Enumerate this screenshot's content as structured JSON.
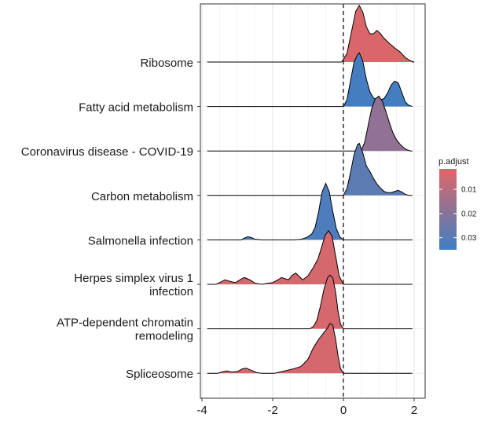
{
  "chart_data": {
    "type": "ridgeline",
    "xlim": [
      -4,
      2
    ],
    "x_ticks": [
      -4,
      -2,
      0,
      2
    ],
    "x_tick_labels": [
      "-4",
      "-2",
      "0",
      "2"
    ],
    "vline_x": 0,
    "grid": true,
    "categories": [
      {
        "label": "Ribosome",
        "p_adjust": 0.003,
        "density": [
          [
            -0.05,
            0
          ],
          [
            0.1,
            0.15
          ],
          [
            0.25,
            0.6
          ],
          [
            0.35,
            0.9
          ],
          [
            0.45,
            1.0
          ],
          [
            0.55,
            0.88
          ],
          [
            0.65,
            0.62
          ],
          [
            0.75,
            0.5
          ],
          [
            0.85,
            0.5
          ],
          [
            0.95,
            0.56
          ],
          [
            1.05,
            0.5
          ],
          [
            1.15,
            0.42
          ],
          [
            1.3,
            0.33
          ],
          [
            1.45,
            0.25
          ],
          [
            1.6,
            0.18
          ],
          [
            1.75,
            0.08
          ],
          [
            1.9,
            0.02
          ],
          [
            2.0,
            0
          ]
        ]
      },
      {
        "label": "Fatty acid metabolism",
        "p_adjust": 0.034,
        "density": [
          [
            0.0,
            0
          ],
          [
            0.1,
            0.12
          ],
          [
            0.2,
            0.45
          ],
          [
            0.3,
            0.78
          ],
          [
            0.4,
            0.92
          ],
          [
            0.45,
            0.95
          ],
          [
            0.55,
            0.8
          ],
          [
            0.65,
            0.48
          ],
          [
            0.75,
            0.26
          ],
          [
            0.85,
            0.15
          ],
          [
            0.95,
            0.12
          ],
          [
            1.05,
            0.12
          ],
          [
            1.15,
            0.14
          ],
          [
            1.25,
            0.24
          ],
          [
            1.35,
            0.38
          ],
          [
            1.45,
            0.45
          ],
          [
            1.55,
            0.42
          ],
          [
            1.65,
            0.25
          ],
          [
            1.75,
            0.08
          ],
          [
            1.85,
            0.02
          ],
          [
            1.95,
            0
          ]
        ]
      },
      {
        "label": "Coronavirus disease - COVID-19",
        "p_adjust": 0.018,
        "density": [
          [
            0.5,
            0
          ],
          [
            0.6,
            0.15
          ],
          [
            0.7,
            0.45
          ],
          [
            0.8,
            0.75
          ],
          [
            0.9,
            0.92
          ],
          [
            1.0,
            0.97
          ],
          [
            1.1,
            0.88
          ],
          [
            1.2,
            0.7
          ],
          [
            1.3,
            0.5
          ],
          [
            1.4,
            0.32
          ],
          [
            1.5,
            0.2
          ],
          [
            1.6,
            0.12
          ],
          [
            1.7,
            0.06
          ],
          [
            1.8,
            0.02
          ],
          [
            1.9,
            0
          ]
        ]
      },
      {
        "label": "Carbon metabolism",
        "p_adjust": 0.029,
        "density": [
          [
            0.0,
            0
          ],
          [
            0.1,
            0.12
          ],
          [
            0.2,
            0.4
          ],
          [
            0.3,
            0.72
          ],
          [
            0.4,
            0.9
          ],
          [
            0.45,
            0.92
          ],
          [
            0.55,
            0.75
          ],
          [
            0.65,
            0.52
          ],
          [
            0.75,
            0.42
          ],
          [
            0.85,
            0.3
          ],
          [
            0.95,
            0.2
          ],
          [
            1.05,
            0.13
          ],
          [
            1.15,
            0.07
          ],
          [
            1.25,
            0.05
          ],
          [
            1.35,
            0.05
          ],
          [
            1.45,
            0.07
          ],
          [
            1.55,
            0.09
          ],
          [
            1.65,
            0.06
          ],
          [
            1.75,
            0.02
          ],
          [
            1.85,
            0
          ]
        ]
      },
      {
        "label": "Salmonella infection",
        "p_adjust": 0.032,
        "density": [
          [
            -2.9,
            0
          ],
          [
            -2.8,
            0.03
          ],
          [
            -2.7,
            0.055
          ],
          [
            -2.6,
            0.04
          ],
          [
            -2.5,
            0.01
          ],
          [
            -2.3,
            0
          ],
          [
            -1.4,
            0
          ],
          [
            -1.2,
            0.01
          ],
          [
            -1.05,
            0.04
          ],
          [
            -0.9,
            0.1
          ],
          [
            -0.8,
            0.22
          ],
          [
            -0.7,
            0.5
          ],
          [
            -0.6,
            0.85
          ],
          [
            -0.5,
            1.0
          ],
          [
            -0.4,
            0.85
          ],
          [
            -0.3,
            0.5
          ],
          [
            -0.2,
            0.2
          ],
          [
            -0.1,
            0.05
          ],
          [
            0.0,
            0
          ]
        ]
      },
      {
        "label": "Herpes simplex virus 1 infection",
        "p_adjust": 0.004,
        "density": [
          [
            -3.6,
            0
          ],
          [
            -3.5,
            0.03
          ],
          [
            -3.35,
            0.08
          ],
          [
            -3.2,
            0.05
          ],
          [
            -3.05,
            0.03
          ],
          [
            -2.9,
            0.09
          ],
          [
            -2.8,
            0.12
          ],
          [
            -2.65,
            0.08
          ],
          [
            -2.5,
            0.02
          ],
          [
            -2.3,
            0
          ],
          [
            -2.15,
            0.02
          ],
          [
            -2.0,
            0.03
          ],
          [
            -1.85,
            0.08
          ],
          [
            -1.75,
            0.12
          ],
          [
            -1.65,
            0.1
          ],
          [
            -1.55,
            0.08
          ],
          [
            -1.45,
            0.16
          ],
          [
            -1.35,
            0.2
          ],
          [
            -1.25,
            0.14
          ],
          [
            -1.15,
            0.08
          ],
          [
            -1.0,
            0.15
          ],
          [
            -0.85,
            0.3
          ],
          [
            -0.72,
            0.45
          ],
          [
            -0.62,
            0.65
          ],
          [
            -0.52,
            0.86
          ],
          [
            -0.42,
            0.95
          ],
          [
            -0.32,
            0.85
          ],
          [
            -0.22,
            0.5
          ],
          [
            -0.12,
            0.15
          ],
          [
            0.0,
            0
          ]
        ]
      },
      {
        "label": "ATP-dependent chromatin remodeling",
        "p_adjust": 0.004,
        "density": [
          [
            -0.95,
            0
          ],
          [
            -0.85,
            0.04
          ],
          [
            -0.75,
            0.15
          ],
          [
            -0.65,
            0.4
          ],
          [
            -0.55,
            0.7
          ],
          [
            -0.45,
            0.9
          ],
          [
            -0.38,
            0.95
          ],
          [
            -0.3,
            0.9
          ],
          [
            -0.22,
            0.65
          ],
          [
            -0.15,
            0.3
          ],
          [
            -0.08,
            0.08
          ],
          [
            0.0,
            0
          ]
        ]
      },
      {
        "label": "Spliceosome",
        "p_adjust": 0.004,
        "density": [
          [
            -3.55,
            0
          ],
          [
            -3.45,
            0.02
          ],
          [
            -3.3,
            0.04
          ],
          [
            -3.15,
            0.02
          ],
          [
            -3.0,
            0.03
          ],
          [
            -2.85,
            0.08
          ],
          [
            -2.75,
            0.09
          ],
          [
            -2.6,
            0.05
          ],
          [
            -2.45,
            0.01
          ],
          [
            -2.3,
            0
          ],
          [
            -1.95,
            0
          ],
          [
            -1.8,
            0.02
          ],
          [
            -1.6,
            0.05
          ],
          [
            -1.4,
            0.08
          ],
          [
            -1.2,
            0.12
          ],
          [
            -1.0,
            0.25
          ],
          [
            -0.85,
            0.45
          ],
          [
            -0.7,
            0.6
          ],
          [
            -0.55,
            0.72
          ],
          [
            -0.45,
            0.8
          ],
          [
            -0.38,
            0.88
          ],
          [
            -0.3,
            0.85
          ],
          [
            -0.22,
            0.6
          ],
          [
            -0.15,
            0.3
          ],
          [
            -0.08,
            0.08
          ],
          [
            0.0,
            0
          ]
        ]
      }
    ],
    "legend": {
      "title": "p.adjust",
      "position": "right",
      "ticks": [
        0.01,
        0.02,
        0.03
      ],
      "tick_labels": [
        "0.01",
        "0.02",
        "0.03"
      ],
      "range": [
        0.0015,
        0.035
      ],
      "color_low": "#e06666",
      "color_high": "#3f7fc4"
    }
  }
}
